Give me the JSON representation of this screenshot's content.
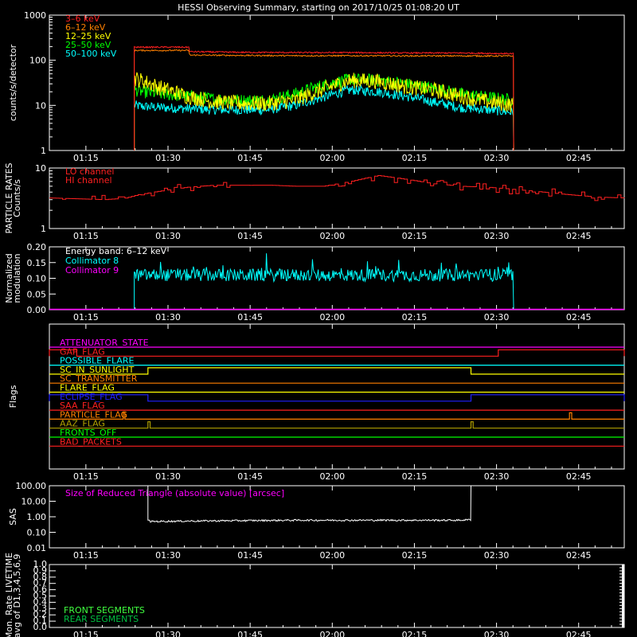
{
  "title": "HESSI Observing Summary, starting on 2017/10/25 01:08:20 UT",
  "time_ticks": [
    "01:15",
    "01:30",
    "01:45",
    "02:00",
    "02:15",
    "02:30",
    "02:45"
  ],
  "colors": {
    "red": "#ff2020",
    "orange": "#ff8000",
    "yellow": "#ffff00",
    "green": "#00ff00",
    "cyan": "#00ffff",
    "magenta": "#ff00ff",
    "white": "#ffffff",
    "blue": "#2020ff",
    "olive": "#b0a000",
    "lightgreen": "#40ff40",
    "midgreen": "#00c040"
  },
  "chart_data": [
    {
      "type": "line",
      "panel": "count-rates",
      "ylabel": "counts/s/detector",
      "yscale": "log",
      "ylim": [
        1,
        1000
      ],
      "yticks": [
        "1",
        "10",
        "100",
        "1000"
      ],
      "x_unit": "minutes after 01:08:20 UT",
      "xlim": [
        0,
        105
      ],
      "series": [
        {
          "name": "3–6 keV",
          "color": "red",
          "x": [
            15.5,
            25.5,
            25.6,
            35,
            45,
            55,
            65,
            75,
            84.8
          ],
          "y": [
            195,
            195,
            155,
            150,
            148,
            148,
            145,
            145,
            140
          ]
        },
        {
          "name": "6–12 keV",
          "color": "orange",
          "x": [
            15.5,
            25.5,
            25.6,
            35,
            45,
            55,
            65,
            75,
            84.8
          ],
          "y": [
            165,
            165,
            130,
            128,
            126,
            126,
            125,
            125,
            124
          ]
        },
        {
          "name": "12–25 keV",
          "color": "yellow",
          "x": [
            15.5,
            17,
            20,
            25,
            30,
            35,
            40,
            45,
            50,
            55,
            60,
            65,
            70,
            75,
            80,
            84.8
          ],
          "y": [
            40,
            35,
            25,
            16,
            12,
            11,
            11,
            13,
            22,
            36,
            34,
            26,
            22,
            16,
            12,
            10
          ]
        },
        {
          "name": "25–50 keV",
          "color": "green",
          "x": [
            15.5,
            17,
            20,
            25,
            30,
            35,
            40,
            45,
            50,
            55,
            60,
            65,
            70,
            75,
            80,
            84.8
          ],
          "y": [
            22,
            20,
            18,
            16,
            14,
            13,
            13,
            18,
            28,
            38,
            36,
            30,
            24,
            18,
            15,
            13
          ]
        },
        {
          "name": "50–100 keV",
          "color": "cyan",
          "x": [
            15.5,
            17,
            20,
            25,
            30,
            35,
            40,
            45,
            50,
            55,
            60,
            65,
            70,
            75,
            80,
            84.8
          ],
          "y": [
            10,
            9.5,
            9,
            8.5,
            8,
            8,
            8,
            10,
            15,
            22,
            20,
            16,
            12,
            9,
            8,
            7
          ]
        }
      ]
    },
    {
      "type": "line",
      "panel": "particle-rates",
      "ylabel": "PARTICLE RATES Counts/s",
      "yscale": "log",
      "ylim": [
        1,
        10
      ],
      "yticks": [
        "1",
        "10"
      ],
      "series": [
        {
          "name": "LO channel",
          "color": "red",
          "x": [],
          "y": []
        },
        {
          "name": "HI channel",
          "color": "red",
          "x": [
            0,
            10,
            14,
            16,
            25,
            30,
            40,
            45,
            50,
            55,
            60,
            65,
            70,
            75,
            80,
            84,
            90,
            95,
            100,
            105
          ],
          "y": [
            3.2,
            3.0,
            3.2,
            3.6,
            4.8,
            5.2,
            5.2,
            5.0,
            5.0,
            6.0,
            7.5,
            6.5,
            5.5,
            5.0,
            4.8,
            4.5,
            4.0,
            3.6,
            3.3,
            3.2
          ]
        }
      ]
    },
    {
      "type": "line",
      "panel": "modulation",
      "ylabel": "Normalized modulation",
      "ylim": [
        0,
        0.2
      ],
      "yticks": [
        "0.00",
        "0.05",
        "0.10",
        "0.15",
        "0.20"
      ],
      "annotation": "Energy band: 6–12 keV",
      "series": [
        {
          "name": "Collimator 8",
          "color": "cyan",
          "x": [
            15.5,
            84.8
          ],
          "y": [
            0.11,
            0.11
          ]
        },
        {
          "name": "Collimator 9",
          "color": "magenta",
          "x": [
            0,
            105
          ],
          "y": [
            0,
            0
          ]
        }
      ]
    },
    {
      "type": "line",
      "panel": "flags",
      "ylabel": "Flags",
      "flags": [
        {
          "name": "ATTENUATOR_STATE",
          "color": "magenta",
          "high": []
        },
        {
          "name": "GAP_FLAG",
          "color": "red",
          "high": [
            [
              0,
              5
            ],
            [
              82,
              105
            ]
          ]
        },
        {
          "name": "POSSIBLE_FLARE",
          "color": "cyan",
          "high": []
        },
        {
          "name": "SC_IN_SUNLIGHT",
          "color": "yellow",
          "high": [
            [
              18,
              77
            ]
          ]
        },
        {
          "name": "SC_TRANSMITTER",
          "color": "orange",
          "high": []
        },
        {
          "name": "FLARE_FLAG",
          "color": "yellow",
          "high": []
        },
        {
          "name": "ECLIPSE_FLAG",
          "color": "blue",
          "high": [
            [
              0,
              18
            ],
            [
              77,
              105
            ]
          ]
        },
        {
          "name": "SAA_FLAG",
          "color": "red",
          "high": []
        },
        {
          "name": "PARTICLE_FLAG",
          "color": "orange",
          "high": [
            [
              13.5,
              13.8
            ],
            [
              95,
              95.4
            ]
          ]
        },
        {
          "name": "AAZ_FLAG",
          "color": "olive",
          "high": [
            [
              18,
              18.4
            ],
            [
              77,
              77.4
            ]
          ]
        },
        {
          "name": "FRONTS_OFF",
          "color": "green",
          "high": []
        },
        {
          "name": "BAD_PACKETS",
          "color": "red",
          "high": []
        }
      ]
    },
    {
      "type": "line",
      "panel": "sas",
      "ylabel": "SAS",
      "yscale": "log",
      "ylim": [
        0.01,
        100
      ],
      "yticks": [
        "0.01",
        "0.10",
        "1.00",
        "10.00",
        "100.00"
      ],
      "annotation": "Size of Reduced Triangle (absolute value) [arcsec]",
      "series": [
        {
          "name": "",
          "color": "white",
          "x": [
            18,
            18.5,
            30,
            45,
            60,
            75,
            77,
            77.1
          ],
          "y": [
            0.6,
            0.5,
            0.55,
            0.6,
            0.6,
            0.6,
            0.65,
            100
          ]
        }
      ]
    },
    {
      "type": "line",
      "panel": "livetime",
      "ylabel": "Mon. Rate LIVETIME avg of D1,3,4,5,6,9",
      "ylim": [
        0,
        1
      ],
      "yticks": [
        "0.0",
        "0.1",
        "0.2",
        "0.3",
        "0.4",
        "0.5",
        "0.6",
        "0.7",
        "0.8",
        "0.9",
        "1.0"
      ],
      "series": [
        {
          "name": "FRONT SEGMENTS",
          "color": "lightgreen",
          "x": [],
          "y": []
        },
        {
          "name": "REAR SEGMENTS",
          "color": "midgreen",
          "x": [],
          "y": []
        }
      ]
    }
  ]
}
